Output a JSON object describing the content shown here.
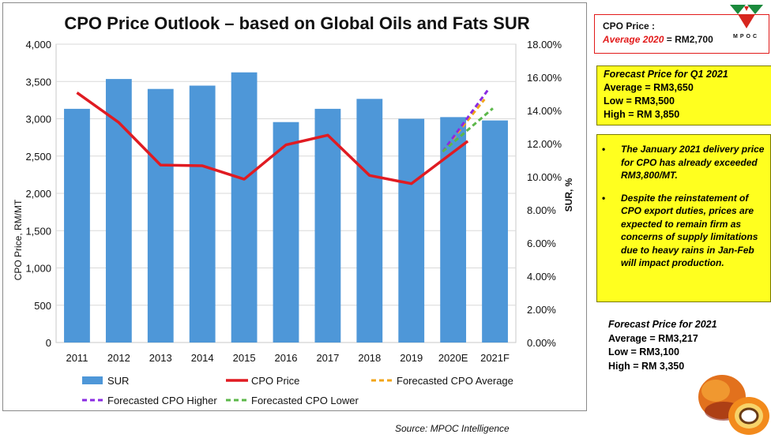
{
  "chart_data": {
    "type": "bar+line",
    "title": "CPO Price Outlook – based on Global Oils and Fats SUR",
    "categories": [
      "2011",
      "2012",
      "2013",
      "2014",
      "2015",
      "2016",
      "2017",
      "2018",
      "2019",
      "2020E",
      "2021F"
    ],
    "y_left": {
      "label": "CPO Price, RM/MT",
      "lim": [
        0,
        4000
      ],
      "ticks": [
        "0",
        "500",
        "1,000",
        "1,500",
        "2,000",
        "2,500",
        "3,000",
        "3,500",
        "4,000"
      ]
    },
    "y_right": {
      "label": "SUR, %",
      "lim": [
        0,
        18
      ],
      "ticks": [
        "0.00%",
        "2.00%",
        "4.00%",
        "6.00%",
        "8.00%",
        "10.00%",
        "12.00%",
        "14.00%",
        "16.00%",
        "18.00%"
      ]
    },
    "series": [
      {
        "name": "SUR",
        "kind": "bar",
        "axis": "right",
        "color": "#4e97d8",
        "values": [
          14.1,
          15.9,
          15.3,
          15.5,
          16.3,
          13.3,
          14.1,
          14.7,
          13.5,
          13.6,
          13.4
        ]
      },
      {
        "name": "CPO Price",
        "kind": "line",
        "axis": "left",
        "color": "#e01b22",
        "values": [
          3350,
          2950,
          2380,
          2370,
          2190,
          2650,
          2780,
          2240,
          2130,
          null,
          null
        ],
        "extra_point": {
          "x_index": 9.35,
          "value": 2700
        }
      },
      {
        "name": "Forecasted CPO Average",
        "kind": "dashed",
        "axis": "left",
        "color": "#f2a519",
        "from": {
          "x_index": 8.75,
          "value": 2560
        },
        "to": {
          "x_index": 9.75,
          "value": 3260
        }
      },
      {
        "name": "Forecasted CPO Higher",
        "kind": "dashed",
        "axis": "left",
        "color": "#8a2be2",
        "from": {
          "x_index": 8.75,
          "value": 2560
        },
        "to": {
          "x_index": 9.85,
          "value": 3400
        }
      },
      {
        "name": "Forecasted CPO Lower",
        "kind": "dashed",
        "axis": "left",
        "color": "#5cb84a",
        "from": {
          "x_index": 8.75,
          "value": 2560
        },
        "to": {
          "x_index": 9.95,
          "value": 3140
        }
      }
    ],
    "legend": [
      "SUR",
      "CPO Price",
      "Forecasted CPO Average",
      "Forecasted CPO Higher",
      "Forecasted CPO Lower"
    ],
    "legend_placement": "bottom",
    "grid": "horizontal"
  },
  "source": "Source: MPOC Intelligence",
  "price_box": {
    "label": "CPO Price :",
    "avg_label": "Average 2020",
    "eq": " = ",
    "avg_value": "RM2,700"
  },
  "logo_text": "MPOC",
  "q1_box": {
    "heading": "Forecast Price for Q1 2021",
    "average": "Average = RM3,650",
    "low": "Low = RM3,500",
    "high": "High = RM 3,850"
  },
  "notes": [
    "The January 2021 delivery price for CPO has already exceeded RM3,800/MT.",
    "Despite the reinstatement of CPO export duties, prices are expected to remain firm as concerns of supply limitations due to heavy rains in Jan-Feb will impact production."
  ],
  "bullet_symbol": "•",
  "fy_box": {
    "heading": "Forecast  Price for 2021",
    "average": "Average = RM3,217",
    "low": "Low = RM3,100",
    "high": "High = RM 3,350"
  },
  "colors": {
    "accent_red": "#e21a1a",
    "highlight_yellow": "#ffff1f",
    "bar_blue": "#4e97d8"
  }
}
